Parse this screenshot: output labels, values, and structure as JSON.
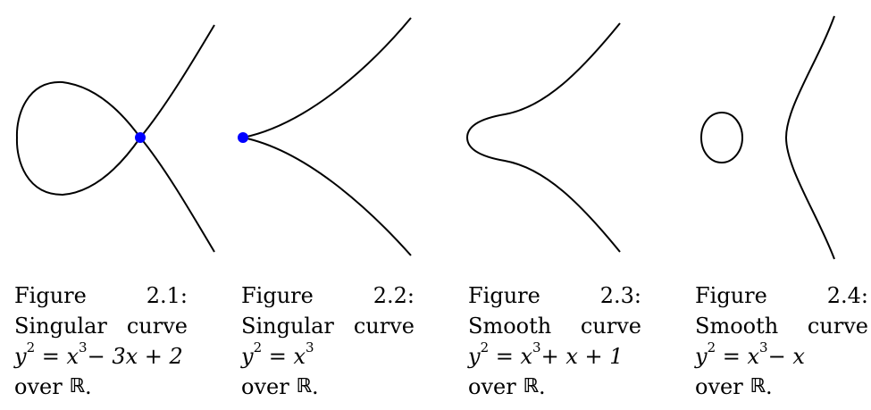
{
  "figures": [
    {
      "label": "Figure",
      "number": "2.1:",
      "kind_word1": "Singular",
      "kind_word2": "curve",
      "eq_lhs": "y",
      "eq_lhs_exp": "2",
      "eq_rhs_main": "x",
      "eq_rhs_exp": "3",
      "eq_rhs_tail": " − 3x + 2",
      "over_prefix": "over ",
      "field": "ℝ",
      "over_suffix": ".",
      "equation": "y^2 = x^3 - 3x + 2",
      "singular_point": [
        1,
        0
      ]
    },
    {
      "label": "Figure",
      "number": "2.2:",
      "kind_word1": "Singular",
      "kind_word2": "curve",
      "eq_lhs": "y",
      "eq_lhs_exp": "2",
      "eq_rhs_main": "x",
      "eq_rhs_exp": "3",
      "eq_rhs_tail": "",
      "over_prefix": "over ",
      "field": "ℝ",
      "over_suffix": ".",
      "equation": "y^2 = x^3",
      "singular_point": [
        0,
        0
      ]
    },
    {
      "label": "Figure",
      "number": "2.3:",
      "kind_word1": "Smooth",
      "kind_word2": "curve",
      "eq_lhs": "y",
      "eq_lhs_exp": "2",
      "eq_rhs_main": "x",
      "eq_rhs_exp": "3",
      "eq_rhs_tail": " + x + 1",
      "over_prefix": "over ",
      "field": "ℝ",
      "over_suffix": ".",
      "equation": "y^2 = x^3 + x + 1",
      "singular_point": null
    },
    {
      "label": "Figure",
      "number": "2.4:",
      "kind_word1": "Smooth",
      "kind_word2": "curve",
      "eq_lhs": "y",
      "eq_lhs_exp": "2",
      "eq_rhs_main": "x",
      "eq_rhs_exp": "3",
      "eq_rhs_tail": " − x",
      "over_prefix": "over ",
      "field": "ℝ",
      "over_suffix": ".",
      "equation": "y^2 = x^3 - x",
      "singular_point": null
    }
  ],
  "colors": {
    "curve": "#000000",
    "singular_point": "#0000ff"
  }
}
